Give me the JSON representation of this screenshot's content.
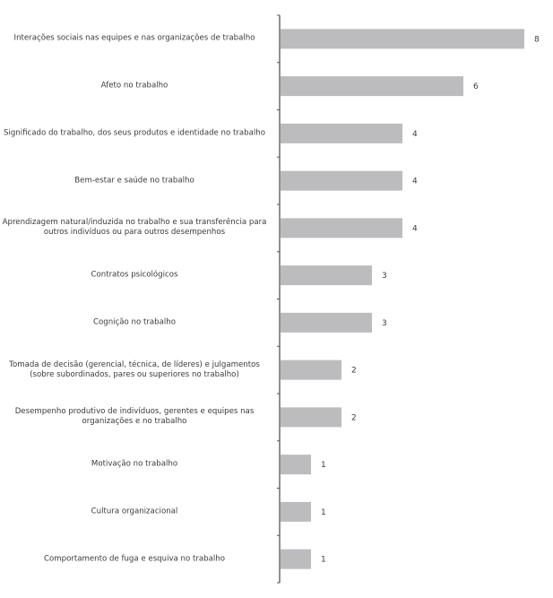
{
  "chart_data": {
    "type": "bar",
    "orientation": "horizontal",
    "categories": [
      "Interações sociais nas equipes e nas organizações de trabalho",
      "Afeto no trabalho",
      "Significado do trabalho, dos seus produtos e identidade no trabalho",
      "Bem-estar e saúde no trabalho",
      "Aprendizagem natural/induzida no trabalho e sua transferência para outros indivíduos ou para outros desempenhos",
      "Contratos psicológicos",
      "Cognição no trabalho",
      "Tomada de decisão (gerencial, técnica, de líderes) e  julgamentos (sobre subordinados, pares ou superiores no trabalho)",
      "Desempenho produtivo de indivíduos, gerentes e equipes nas organizações e no trabalho",
      "Motivação no trabalho",
      "Cultura organizacional",
      "Comportamento de fuga e esquiva no trabalho"
    ],
    "values": [
      8,
      6,
      4,
      4,
      4,
      3,
      3,
      2,
      2,
      1,
      1,
      1
    ],
    "xlim": [
      0,
      8.5
    ],
    "grid": false,
    "data_labels": true,
    "colors": {
      "bar": "#bcbcbe",
      "axis": "#555555",
      "text": "#3a3a3a"
    }
  }
}
